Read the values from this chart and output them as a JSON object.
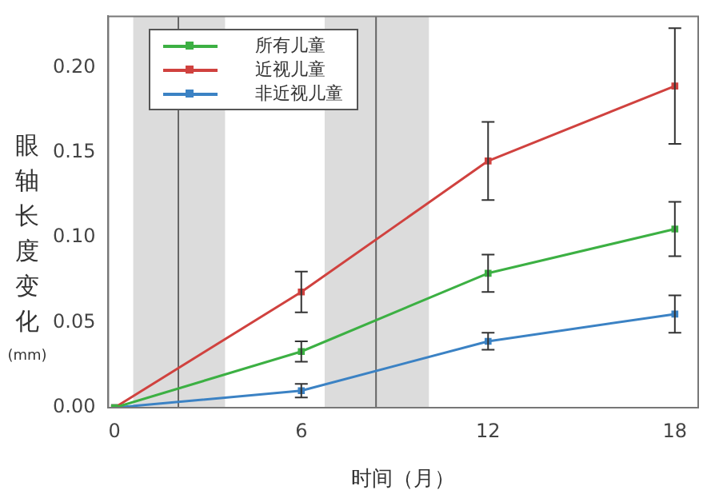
{
  "chart_data": {
    "type": "line",
    "xlabel": "时间（月）",
    "ylabel": "眼轴长度变化(mm)",
    "x": [
      0,
      6,
      12,
      18
    ],
    "series": [
      {
        "name": "所有儿童",
        "color": "#3cb043",
        "values": [
          0,
          0.033,
          0.079,
          0.105
        ],
        "errors": [
          null,
          0.006,
          0.011,
          0.016
        ]
      },
      {
        "name": "近视儿童",
        "color": "#d0423f",
        "values": [
          0,
          0.068,
          0.145,
          0.189
        ],
        "errors": [
          null,
          0.012,
          0.023,
          0.034
        ]
      },
      {
        "name": "非近视儿童",
        "color": "#3b82c4",
        "values": [
          0,
          0.01,
          0.039,
          0.055
        ],
        "errors": [
          null,
          0.004,
          0.005,
          0.011
        ]
      }
    ],
    "xlim": [
      -0.2,
      18.75
    ],
    "xticks": [
      0,
      6,
      12,
      18
    ],
    "ylim": [
      0,
      0.23
    ],
    "yticks": [
      {
        "value": 0,
        "label": "0.00"
      },
      {
        "value": 0.05,
        "label": "0.05"
      },
      {
        "value": 0.1,
        "label": "0.10"
      },
      {
        "value": 0.15,
        "label": "0.15"
      },
      {
        "value": 0.2,
        "label": "0.20"
      }
    ],
    "bands": [
      {
        "axis": "x",
        "from": 0.6,
        "to": 3.55,
        "color": "#dcdcdc"
      },
      {
        "axis": "x",
        "from": 6.75,
        "to": 10.1,
        "color": "#dcdcdc"
      }
    ],
    "ref_lines": [
      {
        "axis": "x",
        "value": 2.05,
        "color": "#666666"
      },
      {
        "axis": "x",
        "value": 8.4,
        "color": "#666666"
      }
    ],
    "grid": false,
    "legend": "top left",
    "marker": "square",
    "line_style": "solid"
  }
}
